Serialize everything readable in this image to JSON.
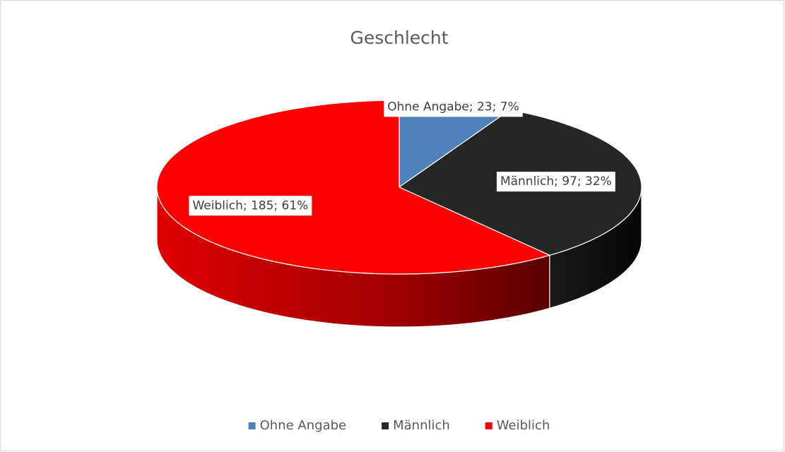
{
  "chart_data": {
    "type": "pie",
    "title": "Geschlecht",
    "categories": [
      "Ohne Angabe",
      "Männlich",
      "Weiblich"
    ],
    "values": [
      23,
      97,
      185
    ],
    "value_labels": [
      "Ohne Angabe; 23; 7%",
      "Männlich; 97; 32%",
      "Weiblich; 185; 61%"
    ],
    "colors": [
      "#4f81bd",
      "#262626",
      "#ff0000"
    ],
    "legend": "bottom"
  }
}
